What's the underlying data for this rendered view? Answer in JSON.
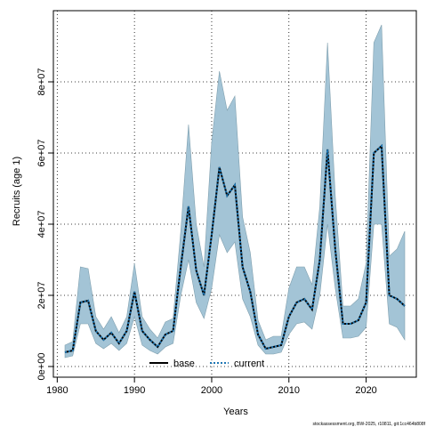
{
  "chart_data": {
    "type": "line",
    "title": "",
    "xlabel": "Years",
    "ylabel": "Recruits (age 1)",
    "xlim": [
      1979.5,
      2026.5
    ],
    "ylim": [
      -3000000,
      100000000
    ],
    "x_ticks": [
      1980,
      1990,
      2000,
      2010,
      2020
    ],
    "x_tick_labels": [
      "1980",
      "1990",
      "2000",
      "2010",
      "2020"
    ],
    "y_ticks": [
      0,
      20000000,
      40000000,
      60000000,
      80000000
    ],
    "y_tick_labels": [
      "0e+00",
      "2e+07",
      "4e+07",
      "6e+07",
      "8e+07"
    ],
    "grid": true,
    "legend_position": "bottom",
    "legend": [
      {
        "label": "base",
        "style": "solid",
        "color": "#000000"
      },
      {
        "label": "current",
        "style": "dotted",
        "color": "#1f77b4"
      }
    ],
    "x": [
      1981,
      1982,
      1983,
      1984,
      1985,
      1986,
      1987,
      1988,
      1989,
      1990,
      1991,
      1992,
      1993,
      1994,
      1995,
      1996,
      1997,
      1998,
      1999,
      2000,
      2001,
      2002,
      2003,
      2004,
      2005,
      2006,
      2007,
      2008,
      2009,
      2010,
      2011,
      2012,
      2013,
      2014,
      2015,
      2016,
      2017,
      2018,
      2019,
      2020,
      2021,
      2022,
      2023,
      2024,
      2025
    ],
    "series": [
      {
        "name": "base",
        "style": "solid",
        "color": "#000000",
        "values": [
          4000000,
          4500000,
          18000000,
          18500000,
          10000000,
          7500000,
          9500000,
          6500000,
          10000000,
          21000000,
          10000000,
          7500000,
          5500000,
          9000000,
          10000000,
          28000000,
          45000000,
          27000000,
          20000000,
          37000000,
          56000000,
          48000000,
          51000000,
          28000000,
          21000000,
          9000000,
          5000000,
          5500000,
          6000000,
          14000000,
          18000000,
          19000000,
          16000000,
          30000000,
          61000000,
          33000000,
          12000000,
          12000000,
          13000000,
          18000000,
          60000000,
          62000000,
          20000000,
          19000000,
          17000000
        ]
      },
      {
        "name": "current",
        "style": "dotted",
        "color": "#1f77b4",
        "values": [
          4000000,
          4500000,
          18000000,
          18500000,
          10000000,
          7500000,
          9500000,
          6500000,
          10000000,
          21000000,
          10000000,
          7500000,
          5500000,
          9000000,
          10000000,
          28000000,
          45000000,
          27000000,
          20000000,
          37000000,
          56000000,
          48000000,
          51000000,
          28000000,
          21000000,
          9000000,
          5000000,
          5500000,
          6000000,
          14000000,
          18000000,
          19000000,
          16000000,
          30000000,
          61000000,
          33000000,
          12000000,
          12000000,
          13000000,
          18000000,
          60000000,
          62000000,
          20000000,
          19000000,
          17000000
        ]
      }
    ],
    "band": {
      "color": "#a3c4d6",
      "upper": [
        6000000,
        7000000,
        28000000,
        27500000,
        14000000,
        10500000,
        14000000,
        9500000,
        14000000,
        29000000,
        14000000,
        10500000,
        8000000,
        12500000,
        13500000,
        38000000,
        68000000,
        40000000,
        28000000,
        63000000,
        83000000,
        72000000,
        76000000,
        42000000,
        32000000,
        13000000,
        7500000,
        8500000,
        8500000,
        22000000,
        28000000,
        28000000,
        23000000,
        45000000,
        91000000,
        48000000,
        17000000,
        17000000,
        19000000,
        29000000,
        91000000,
        96000000,
        31000000,
        33000000,
        38000000
      ],
      "lower": [
        2500000,
        3000000,
        12000000,
        12000000,
        6500000,
        5000000,
        6500000,
        4500000,
        6500000,
        14000000,
        6000000,
        4500000,
        3500000,
        5500000,
        6500000,
        20000000,
        30000000,
        18000000,
        13500000,
        22000000,
        37000000,
        32000000,
        35000000,
        19000000,
        14000000,
        6000000,
        3500000,
        3500000,
        4000000,
        9000000,
        12000000,
        12500000,
        10500000,
        20000000,
        40000000,
        22000000,
        8000000,
        8000000,
        8500000,
        11000000,
        40000000,
        40000000,
        12000000,
        11000000,
        7500000
      ]
    }
  },
  "footer_text": "stockassessment.org, BW-2025, r10811, git:1cc464b808f"
}
